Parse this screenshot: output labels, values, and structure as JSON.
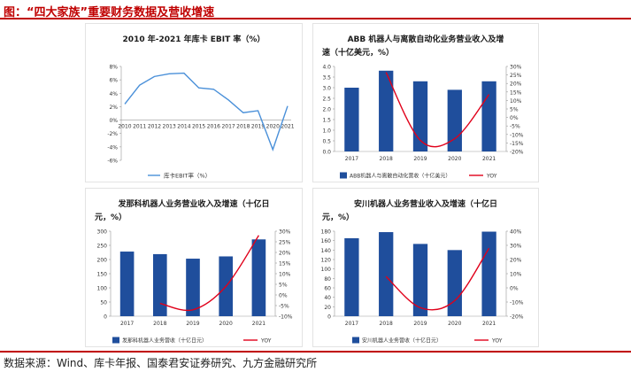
{
  "figure_title": "图：“四大家族”重要财务数据及营收增速",
  "source": "数据来源：Wind、库卡年报、国泰君安证券研究、九方金融研究所",
  "colors": {
    "bar": "#1f4e9c",
    "yoy": "#e0001a",
    "ebit": "#4a90d9",
    "title": "#c00000"
  },
  "chart_data": [
    {
      "type": "line",
      "title": "2010 年-2021 年库卡 EBIT 率（%）",
      "x": [
        "2010",
        "2011",
        "2012",
        "2013",
        "2014",
        "2015",
        "2016",
        "2017",
        "2018",
        "2019",
        "2020",
        "2021"
      ],
      "series": [
        {
          "name": "库卡EBIT率（%）",
          "values": [
            2.4,
            5.2,
            6.5,
            6.9,
            7.0,
            4.8,
            4.6,
            3.0,
            1.1,
            1.4,
            -4.4,
            2.1
          ]
        }
      ],
      "yticks": [
        "8%",
        "6%",
        "4%",
        "2%",
        "0%",
        "-2%",
        "-4%",
        "-6%"
      ],
      "ylim": [
        -6,
        8
      ]
    },
    {
      "type": "bar",
      "title": "ABB 机器人与离散自动化业务营业收入及增速（十亿美元，%）",
      "categories": [
        "2017",
        "2018",
        "2019",
        "2020",
        "2021"
      ],
      "series": [
        {
          "name": "ABB机器人与离散自动化营收（十亿美元）",
          "values": [
            3.0,
            3.8,
            3.3,
            2.9,
            3.3
          ]
        },
        {
          "name": "YOY",
          "values": [
            null,
            26.5,
            -13.5,
            -12.5,
            13.5
          ]
        }
      ],
      "yticks_left": [
        "4.0",
        "3.5",
        "3.0",
        "2.5",
        "2.0",
        "1.5",
        "1.0",
        "0.5",
        "0.0"
      ],
      "yticks_right": [
        "30%",
        "25%",
        "20%",
        "15%",
        "10%",
        "5%",
        "0%",
        "-5%",
        "-10%",
        "-15%",
        "-20%"
      ],
      "ylim_left": [
        0,
        4
      ],
      "ylim_right": [
        -20,
        30
      ]
    },
    {
      "type": "bar",
      "title": "发那科机器人业务营业收入及增速（十亿日元，%）",
      "categories": [
        "2017",
        "2018",
        "2019",
        "2020",
        "2021"
      ],
      "series": [
        {
          "name": "发那科机器人业务营收（十亿日元）",
          "values": [
            228,
            219,
            203,
            211,
            271
          ]
        },
        {
          "name": "YOY",
          "values": [
            null,
            -4,
            -7,
            4,
            28
          ]
        }
      ],
      "yticks_left": [
        "300",
        "250",
        "200",
        "150",
        "100",
        "50",
        "0"
      ],
      "yticks_right": [
        "30%",
        "25%",
        "20%",
        "15%",
        "10%",
        "5%",
        "0%",
        "-5%",
        "-10%"
      ],
      "ylim_left": [
        0,
        300
      ],
      "ylim_right": [
        -10,
        30
      ]
    },
    {
      "type": "bar",
      "title": "安川机器人业务营业收入及增速（十亿日元，%）",
      "categories": [
        "2017",
        "2018",
        "2019",
        "2020",
        "2021"
      ],
      "series": [
        {
          "name": "安川机器人业务营收（十亿日元）",
          "values": [
            165,
            178,
            153,
            140,
            179
          ]
        },
        {
          "name": "YOY",
          "values": [
            null,
            8,
            -14,
            -9,
            28
          ]
        }
      ],
      "yticks_left": [
        "180",
        "160",
        "140",
        "120",
        "100",
        "80",
        "60",
        "40",
        "20",
        "0"
      ],
      "yticks_right": [
        "40%",
        "30%",
        "20%",
        "10%",
        "0%",
        "-10%",
        "-20%"
      ],
      "ylim_left": [
        0,
        180
      ],
      "ylim_right": [
        -20,
        40
      ]
    }
  ],
  "title_lines": [
    [
      "2010 年-2021 年库卡 EBIT 率（%）"
    ],
    [
      "ABB 机器人与离散自动化业务营业收入及增",
      "速（十亿美元，%）"
    ],
    [
      "发那科机器人业务营业收入及增速（十亿日",
      "元，%）"
    ],
    [
      "安川机器人业务营业收入及增速（十亿日",
      "元，%）"
    ]
  ]
}
